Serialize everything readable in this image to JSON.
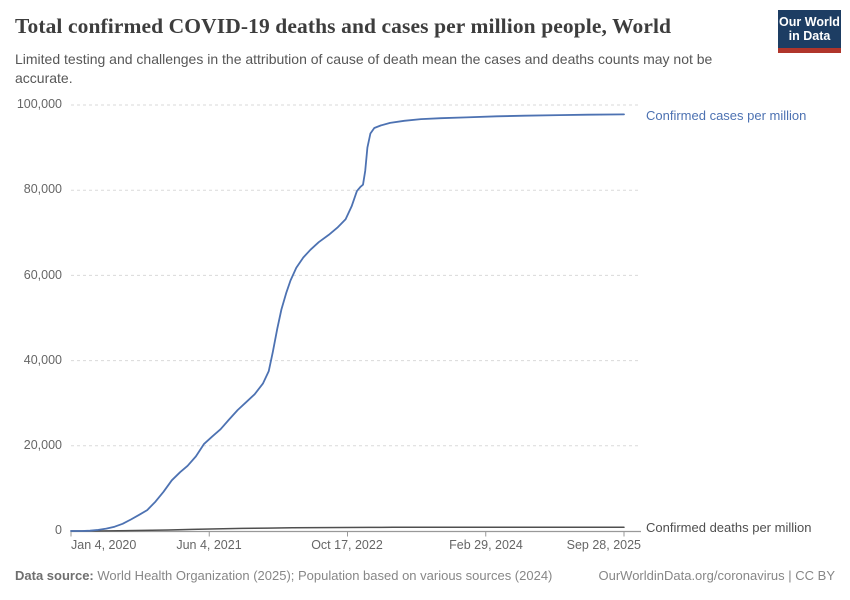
{
  "header": {
    "title": "Total confirmed COVID-19 deaths and cases per million people, World",
    "subtitle": "Limited testing and challenges in the attribution of cause of death mean the cases and deaths counts may not be accurate.",
    "logo": {
      "line1": "Our World",
      "line2": "in Data",
      "bg_color": "#1d3d63",
      "accent_color": "#b0352b"
    }
  },
  "chart_data": {
    "type": "line",
    "title": "Total confirmed COVID-19 deaths and cases per million people, World",
    "xlabel": "",
    "ylabel": "",
    "ylim": [
      0,
      100000
    ],
    "grid": "horizontal-dashed",
    "legend_position": "right-of-line-end",
    "x_ticks": [
      {
        "label": "Jan 4, 2020",
        "date": "2020-01-04"
      },
      {
        "label": "Jun 4, 2021",
        "date": "2021-06-04"
      },
      {
        "label": "Oct 17, 2022",
        "date": "2022-10-17"
      },
      {
        "label": "Feb 29, 2024",
        "date": "2024-02-29"
      },
      {
        "label": "Sep 28, 2025",
        "date": "2025-09-28"
      }
    ],
    "y_ticks": [
      {
        "label": "0",
        "value": 0
      },
      {
        "label": "20,000",
        "value": 20000
      },
      {
        "label": "40,000",
        "value": 40000
      },
      {
        "label": "60,000",
        "value": 60000
      },
      {
        "label": "80,000",
        "value": 80000
      },
      {
        "label": "100,000",
        "value": 100000
      }
    ],
    "series": [
      {
        "name": "Confirmed cases per million",
        "color": "#4d72b2",
        "points": [
          [
            "2020-01-04",
            0
          ],
          [
            "2020-02-15",
            9
          ],
          [
            "2020-03-15",
            60
          ],
          [
            "2020-04-15",
            260
          ],
          [
            "2020-05-15",
            570
          ],
          [
            "2020-06-15",
            1000
          ],
          [
            "2020-07-15",
            1700
          ],
          [
            "2020-08-15",
            2700
          ],
          [
            "2020-09-15",
            3800
          ],
          [
            "2020-10-15",
            4900
          ],
          [
            "2020-11-15",
            6900
          ],
          [
            "2020-12-15",
            9200
          ],
          [
            "2021-01-15",
            11900
          ],
          [
            "2021-02-15",
            13800
          ],
          [
            "2021-03-15",
            15300
          ],
          [
            "2021-04-15",
            17500
          ],
          [
            "2021-05-15",
            20400
          ],
          [
            "2021-06-15",
            22200
          ],
          [
            "2021-07-15",
            23900
          ],
          [
            "2021-08-15",
            26200
          ],
          [
            "2021-09-15",
            28400
          ],
          [
            "2021-10-15",
            30200
          ],
          [
            "2021-11-15",
            32100
          ],
          [
            "2021-12-15",
            34600
          ],
          [
            "2022-01-05",
            37500
          ],
          [
            "2022-01-20",
            42000
          ],
          [
            "2022-02-05",
            47500
          ],
          [
            "2022-02-20",
            52000
          ],
          [
            "2022-03-10",
            56000
          ],
          [
            "2022-03-25",
            58800
          ],
          [
            "2022-04-15",
            61800
          ],
          [
            "2022-05-10",
            64200
          ],
          [
            "2022-06-05",
            66000
          ],
          [
            "2022-07-05",
            67800
          ],
          [
            "2022-08-10",
            69500
          ],
          [
            "2022-09-10",
            71200
          ],
          [
            "2022-10-10",
            73200
          ],
          [
            "2022-11-01",
            76200
          ],
          [
            "2022-11-20",
            79800
          ],
          [
            "2022-12-03",
            80800
          ],
          [
            "2022-12-12",
            81300
          ],
          [
            "2022-12-20",
            84500
          ],
          [
            "2022-12-28",
            90000
          ],
          [
            "2023-01-08",
            93300
          ],
          [
            "2023-01-22",
            94600
          ],
          [
            "2023-02-15",
            95200
          ],
          [
            "2023-03-20",
            95800
          ],
          [
            "2023-05-10",
            96300
          ],
          [
            "2023-07-10",
            96700
          ],
          [
            "2023-09-20",
            96900
          ],
          [
            "2023-12-20",
            97100
          ],
          [
            "2024-04-15",
            97350
          ],
          [
            "2024-08-10",
            97500
          ],
          [
            "2025-01-01",
            97620
          ],
          [
            "2025-05-01",
            97720
          ],
          [
            "2025-09-28",
            97800
          ]
        ]
      },
      {
        "name": "Confirmed deaths per million",
        "color": "#4f4f4f",
        "points": [
          [
            "2020-01-04",
            0
          ],
          [
            "2020-04-01",
            8
          ],
          [
            "2020-07-01",
            67
          ],
          [
            "2020-10-01",
            130
          ],
          [
            "2021-01-01",
            240
          ],
          [
            "2021-04-01",
            370
          ],
          [
            "2021-07-01",
            500
          ],
          [
            "2021-10-01",
            610
          ],
          [
            "2022-01-01",
            690
          ],
          [
            "2022-04-01",
            765
          ],
          [
            "2022-07-01",
            790
          ],
          [
            "2022-10-01",
            812
          ],
          [
            "2023-01-01",
            838
          ],
          [
            "2023-04-01",
            858
          ],
          [
            "2023-07-01",
            866
          ],
          [
            "2024-01-01",
            874
          ],
          [
            "2024-07-01",
            879
          ],
          [
            "2025-09-28",
            885
          ]
        ]
      }
    ],
    "style": {
      "grid_color": "#dadada",
      "axis_color": "#999999",
      "tick_label_color": "#666666"
    }
  },
  "footer": {
    "source_label": "Data source:",
    "source_text": " World Health Organization (2025); Population based on various sources (2024)",
    "rights": "OurWorldinData.org/coronavirus | CC BY"
  }
}
